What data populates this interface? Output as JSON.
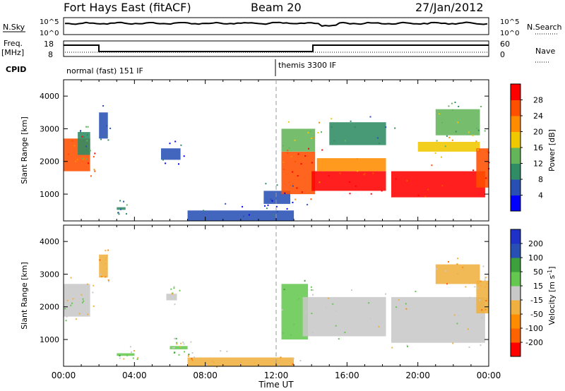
{
  "header": {
    "station": "Fort Hays East (fitACF)",
    "beam": "Beam 20",
    "date": "27/Jan/2012"
  },
  "top_panels": {
    "nsky_label": "N.Sky",
    "nsky_ticks": [
      "10^5",
      "10^0"
    ],
    "nsearch_label": "N.Search",
    "nsearch_ticks": [
      "10^5",
      "10^0"
    ],
    "freq_label_1": "Freq.",
    "freq_label_2": "[MHz]",
    "freq_ticks": [
      "18",
      "8"
    ],
    "nave_label": "Nave",
    "nave_ticks": [
      "60",
      "0"
    ],
    "cpid_label": "CPID",
    "cpid_segments": [
      {
        "label": "normal (fast) 151 IF",
        "start": 0,
        "end": 12
      },
      {
        "label": "themis 3300 IF",
        "start": 12,
        "end": 24
      }
    ]
  },
  "x_axis": {
    "title": "Time UT",
    "tick_labels": [
      "00:00",
      "04:00",
      "08:00",
      "12:00",
      "16:00",
      "20:00",
      "00:00"
    ]
  },
  "chart_data": [
    {
      "type": "heatmap",
      "name": "power",
      "xlabel": "Time UT",
      "ylabel": "Slant Range [km]",
      "xlim": [
        0,
        24
      ],
      "ylim": [
        180,
        4500
      ],
      "y_ticks": [
        1000,
        2000,
        3000,
        4000
      ],
      "colorbar": {
        "label": "Power [dB]",
        "ticks": [
          "28",
          "24",
          "20",
          "16",
          "12",
          "8",
          "4"
        ],
        "range": [
          0,
          30
        ],
        "colors": [
          "#0000ff",
          "#2850b4",
          "#2f8c64",
          "#64b45a",
          "#f0c800",
          "#ff8c00",
          "#ff5000",
          "#ff0000"
        ]
      },
      "regions": [
        {
          "t": [
            0.0,
            1.5
          ],
          "r": [
            1700,
            2700
          ],
          "v": 24
        },
        {
          "t": [
            0.8,
            1.5
          ],
          "r": [
            2200,
            2900
          ],
          "v": 10
        },
        {
          "t": [
            2.0,
            2.5
          ],
          "r": [
            2700,
            3500
          ],
          "v": 6
        },
        {
          "t": [
            5.5,
            6.6
          ],
          "r": [
            2050,
            2400
          ],
          "v": 5
        },
        {
          "t": [
            3.0,
            3.5
          ],
          "r": [
            520,
            600
          ],
          "v": 8
        },
        {
          "t": [
            7.0,
            13.0
          ],
          "r": [
            180,
            500
          ],
          "v": 6
        },
        {
          "t": [
            11.3,
            12.8
          ],
          "r": [
            700,
            1100
          ],
          "v": 5
        },
        {
          "t": [
            12.3,
            14.2
          ],
          "r": [
            1000,
            2300
          ],
          "v": 26
        },
        {
          "t": [
            12.3,
            14.2
          ],
          "r": [
            2300,
            3000
          ],
          "v": 14
        },
        {
          "t": [
            14.0,
            18.2
          ],
          "r": [
            1100,
            1700
          ],
          "v": 29
        },
        {
          "t": [
            14.3,
            18.2
          ],
          "r": [
            1700,
            2100
          ],
          "v": 20
        },
        {
          "t": [
            15.0,
            18.2
          ],
          "r": [
            2500,
            3200
          ],
          "v": 10
        },
        {
          "t": [
            18.5,
            23.8
          ],
          "r": [
            900,
            1700
          ],
          "v": 27
        },
        {
          "t": [
            20.0,
            23.5
          ],
          "r": [
            2300,
            2600
          ],
          "v": 18
        },
        {
          "t": [
            21.0,
            23.5
          ],
          "r": [
            2800,
            3600
          ],
          "v": 12
        },
        {
          "t": [
            23.3,
            24.0
          ],
          "r": [
            1200,
            2400
          ],
          "v": 25
        }
      ]
    },
    {
      "type": "heatmap",
      "name": "velocity",
      "xlabel": "Time UT",
      "ylabel": "Slant Range [km]",
      "xlim": [
        0,
        24
      ],
      "ylim": [
        180,
        4500
      ],
      "y_ticks": [
        1000,
        2000,
        3000,
        4000
      ],
      "colorbar": {
        "label": "Velocity [m s-1]",
        "label_main": "Velocity [m s",
        "label_exp": "-1",
        "label_close": "]",
        "ticks": [
          "200",
          "100",
          "50",
          "15",
          "-15",
          "-50",
          "-100",
          "-200"
        ],
        "range": [
          -250,
          250
        ],
        "colors": [
          "#ff0000",
          "#ff6400",
          "#ff8c00",
          "#f0b040",
          "#c8c8c8",
          "#64c850",
          "#3ca03c",
          "#2850b4",
          "#1e32c8"
        ]
      },
      "regions": [
        {
          "t": [
            0.0,
            1.5
          ],
          "r": [
            1700,
            2700
          ],
          "v": 0
        },
        {
          "t": [
            2.0,
            2.5
          ],
          "r": [
            2900,
            3600
          ],
          "v": -60
        },
        {
          "t": [
            5.8,
            6.4
          ],
          "r": [
            2200,
            2400
          ],
          "v": 0
        },
        {
          "t": [
            3.0,
            4.0
          ],
          "r": [
            500,
            580
          ],
          "v": 40
        },
        {
          "t": [
            6.0,
            7.0
          ],
          "r": [
            700,
            800
          ],
          "v": 40
        },
        {
          "t": [
            7.0,
            13.0
          ],
          "r": [
            180,
            450
          ],
          "v": -60
        },
        {
          "t": [
            12.3,
            13.8
          ],
          "r": [
            1000,
            2700
          ],
          "v": 40
        },
        {
          "t": [
            13.5,
            18.2
          ],
          "r": [
            1100,
            2300
          ],
          "v": 0
        },
        {
          "t": [
            18.5,
            23.8
          ],
          "r": [
            900,
            2300
          ],
          "v": 0
        },
        {
          "t": [
            21.0,
            23.5
          ],
          "r": [
            2700,
            3300
          ],
          "v": -60
        },
        {
          "t": [
            23.3,
            24.0
          ],
          "r": [
            1800,
            2800
          ],
          "v": -80
        }
      ]
    }
  ]
}
